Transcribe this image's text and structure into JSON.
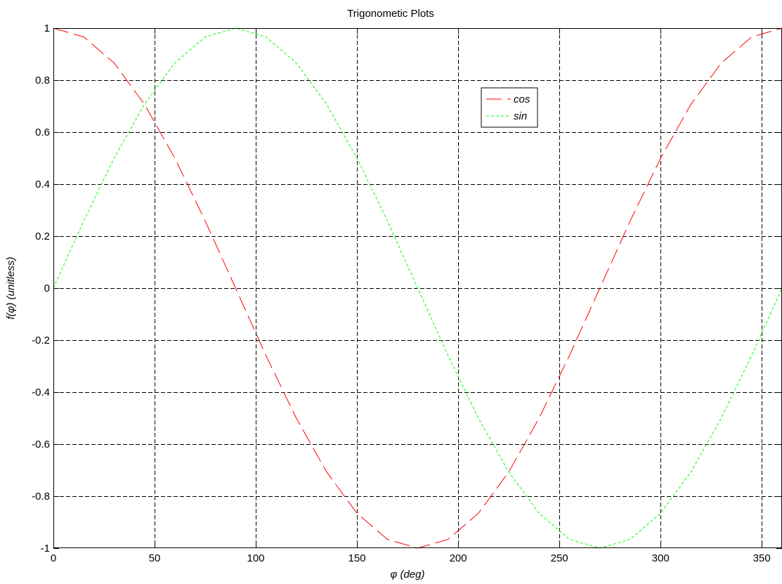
{
  "chart_data": {
    "type": "line",
    "title": "Trigonometic Plots",
    "xlabel_symbol": "φ",
    "xlabel_unit": "(deg)",
    "ylabel": "f(φ) (unitless)",
    "xlim": [
      0,
      360
    ],
    "ylim": [
      -1,
      1
    ],
    "xticks": [
      0,
      50,
      100,
      150,
      200,
      250,
      300,
      350
    ],
    "xtick_labels": [
      "0",
      "50",
      "100",
      "150",
      "200",
      "250",
      "300",
      "350"
    ],
    "yticks": [
      -1,
      -0.8,
      -0.6,
      -0.4,
      -0.2,
      0,
      0.2,
      0.4,
      0.6,
      0.8,
      1
    ],
    "ytick_labels": [
      "-1",
      "-0.8",
      "-0.6",
      "-0.4",
      "-0.2",
      "0",
      "0.2",
      "0.4",
      "0.6",
      "0.8",
      "1"
    ],
    "grid": true,
    "legend_position": "upper-right-inside",
    "x": [
      0,
      15,
      30,
      45,
      60,
      75,
      90,
      105,
      120,
      135,
      150,
      165,
      180,
      195,
      210,
      225,
      240,
      255,
      270,
      285,
      300,
      315,
      330,
      345,
      360
    ],
    "series": [
      {
        "name": "cos",
        "color": "#ff0000",
        "line_style": "long-dash",
        "values": [
          1,
          0.966,
          0.866,
          0.707,
          0.5,
          0.259,
          0,
          -0.259,
          -0.5,
          -0.707,
          -0.866,
          -0.966,
          -1,
          -0.966,
          -0.866,
          -0.707,
          -0.5,
          -0.259,
          0,
          0.259,
          0.5,
          0.707,
          0.866,
          0.966,
          1
        ]
      },
      {
        "name": "sin",
        "color": "#00ff00",
        "line_style": "short-dash",
        "values": [
          0,
          0.259,
          0.5,
          0.707,
          0.866,
          0.966,
          1,
          0.966,
          0.866,
          0.707,
          0.5,
          0.259,
          0,
          -0.259,
          -0.5,
          -0.707,
          -0.866,
          -0.966,
          -1,
          -0.966,
          -0.866,
          -0.707,
          -0.5,
          -0.259,
          0
        ]
      }
    ]
  }
}
